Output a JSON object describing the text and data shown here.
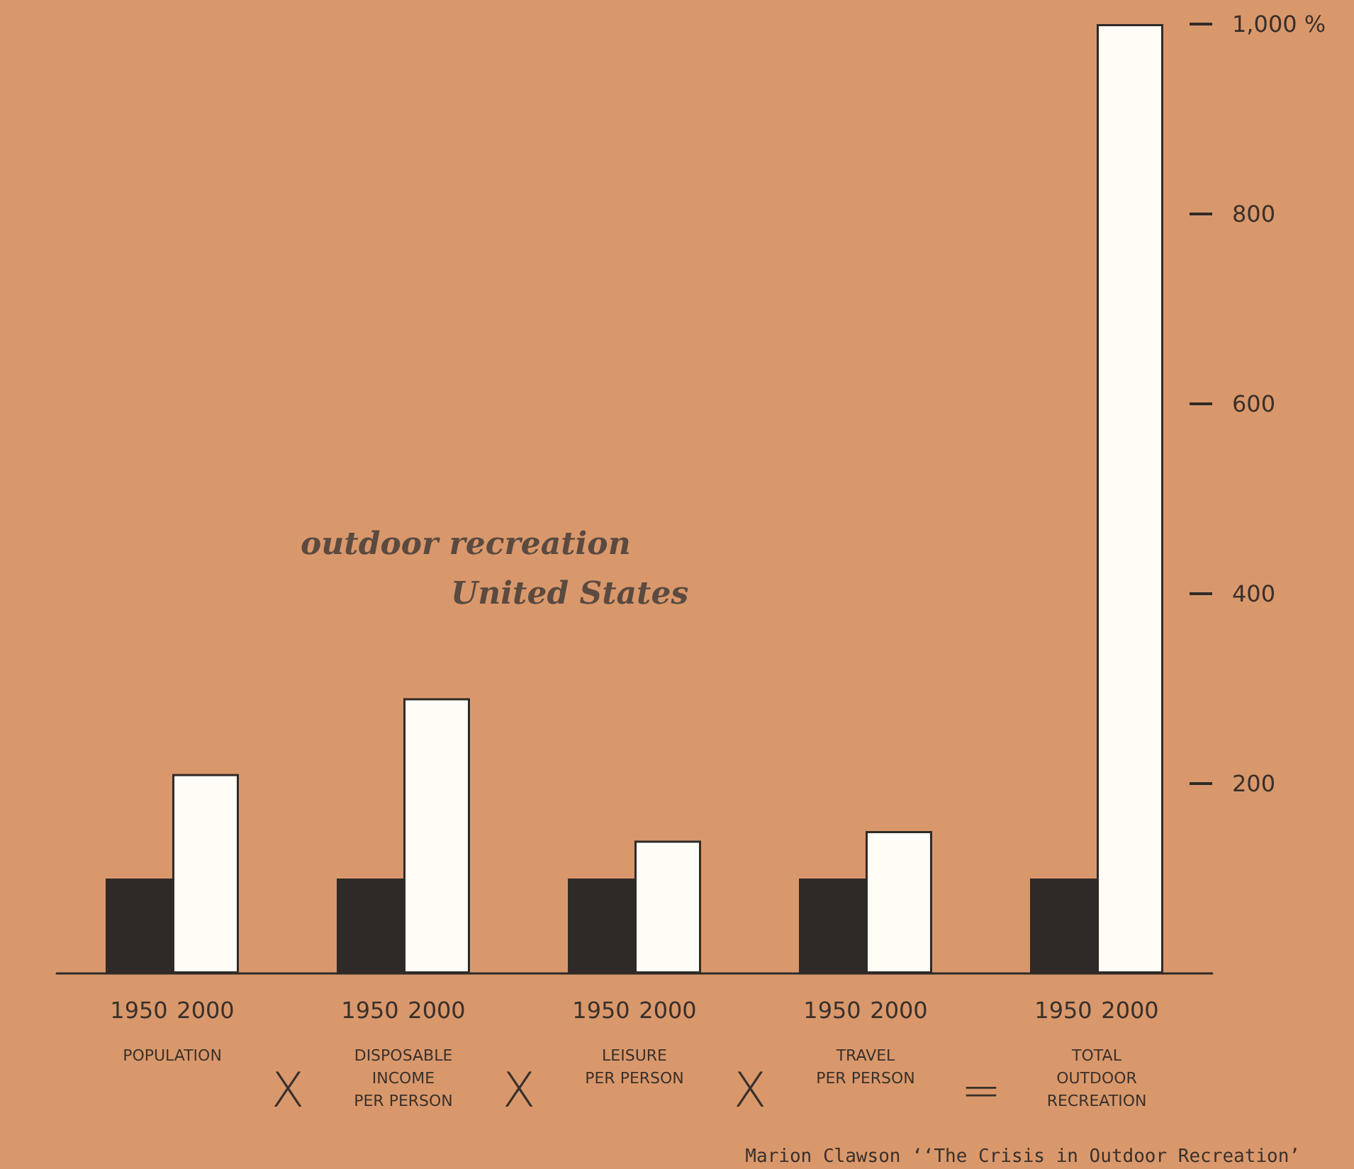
{
  "chart_data": {
    "type": "bar",
    "title": "outdoor recreation",
    "subtitle": "United States",
    "categories": [
      "POPULATION",
      "DISPOSABLE\nINCOME\nPER PERSON",
      "LEISURE\nPER PERSON",
      "TRAVEL\nPER PERSON",
      "TOTAL\nOUTDOOR\nRECREATION"
    ],
    "series": [
      {
        "name": "1950",
        "color": "#2f2a28",
        "values": [
          100,
          100,
          100,
          100,
          100
        ]
      },
      {
        "name": "2000",
        "color": "#fffdf5",
        "values": [
          210,
          290,
          140,
          150,
          1000
        ]
      }
    ],
    "ylim": [
      0,
      1000
    ],
    "yticks": [
      200,
      400,
      600,
      800,
      {
        "value": 1000,
        "label": "1,000 %"
      }
    ],
    "grid": false,
    "legend": false,
    "annotations": [
      "X",
      "X",
      "X",
      "=",
      "Marion Clawson ‘‘The Crisis in Outdoor Recreation’"
    ]
  }
}
